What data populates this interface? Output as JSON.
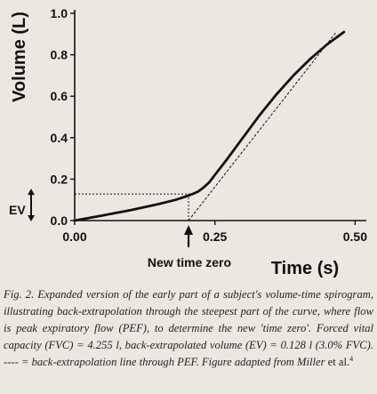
{
  "chart_data": {
    "type": "line",
    "xlabel": "Time (s)",
    "ylabel": "Volume (L)",
    "xlim": [
      0,
      0.52
    ],
    "ylim": [
      0,
      1.0
    ],
    "x_ticks": [
      "0.00",
      "0.25",
      "0.50"
    ],
    "y_ticks": [
      "0.0",
      "0.2",
      "0.4",
      "0.6",
      "0.8",
      "1.0"
    ],
    "grid": false,
    "series": [
      {
        "x": [
          0.0,
          0.05,
          0.1,
          0.15,
          0.18,
          0.2,
          0.21,
          0.22,
          0.23,
          0.24,
          0.25,
          0.27,
          0.3,
          0.33,
          0.36,
          0.39,
          0.42,
          0.45,
          0.48
        ],
        "y": [
          0.0,
          0.025,
          0.05,
          0.08,
          0.1,
          0.118,
          0.128,
          0.14,
          0.16,
          0.185,
          0.22,
          0.29,
          0.4,
          0.51,
          0.61,
          0.7,
          0.78,
          0.85,
          0.91
        ]
      }
    ],
    "backextrapolation_line": {
      "x": [
        0.203,
        0.465
      ],
      "y": [
        0.0,
        0.905
      ]
    },
    "ev_level": 0.128,
    "new_time_zero": 0.203,
    "annotations": {
      "ev_label": "EV",
      "new_time_zero_label": "New time zero"
    }
  },
  "caption": {
    "prefix": "Fig.  2.  Expanded  version  of  the  early  part  of  a  subject's  volume-time spirogram, illustrating back-extrapolation through the steepest part of the curve, where flow is peak expiratory flow (PEF), to determine the new 'time zero'. Forced vital capacity (FVC) = 4.255 l, back-extrapolated volume (EV) = 0.128 l (3.0% FVC). ---- = back-extrapolation line through PEF. Figure adapted from ",
    "author": "Miller",
    "etal": " et al.",
    "ref": "4"
  }
}
